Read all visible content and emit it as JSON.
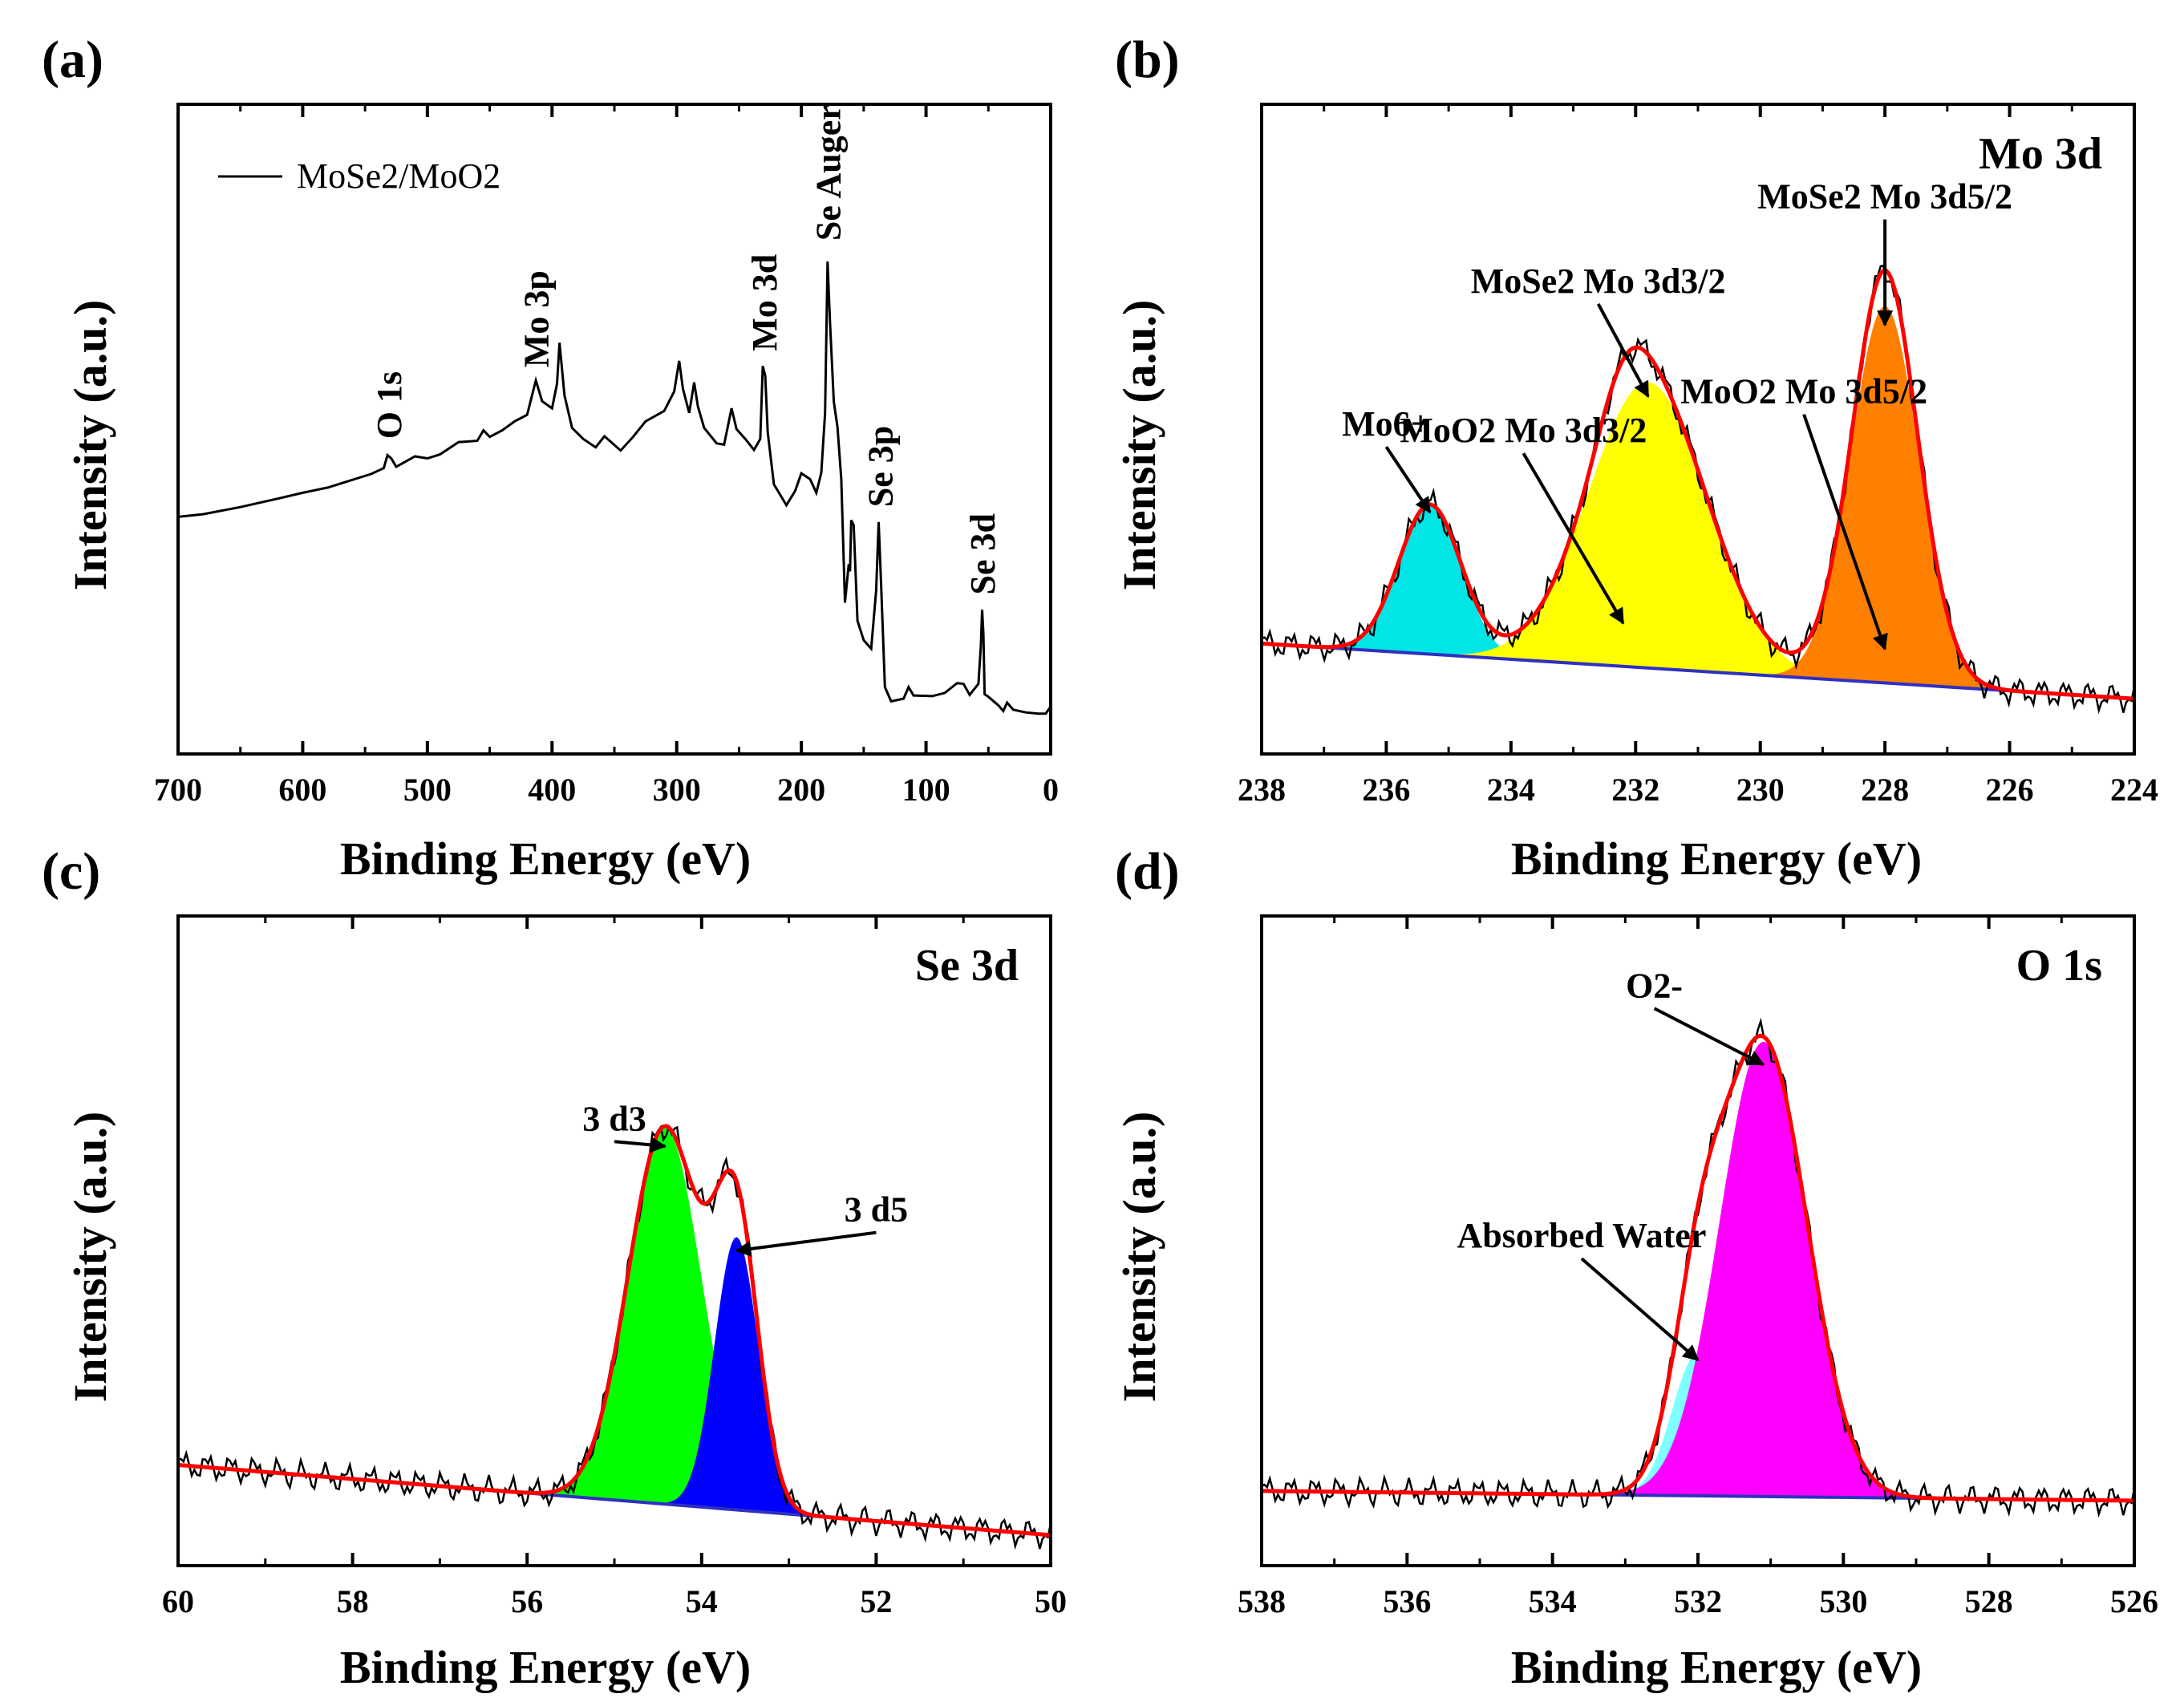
{
  "chart_data": [
    {
      "id": "a",
      "panel_label": "(a)",
      "type": "line",
      "xlabel": "Binding Energy (eV)",
      "ylabel": "Intensity (a.u.)",
      "xlim": [
        700,
        0
      ],
      "ylim": [
        0,
        100
      ],
      "xticks": [
        700,
        600,
        500,
        400,
        300,
        200,
        100,
        0
      ],
      "legend": {
        "label": "MoSe2/MoO2",
        "position": "top-left"
      },
      "series": [
        {
          "name": "MoSe2/MoO2",
          "color": "#000000",
          "points": [
            [
              700,
              36.5
            ],
            [
              680,
              36.9
            ],
            [
              650,
              38
            ],
            [
              620,
              39.3
            ],
            [
              600,
              40.2
            ],
            [
              580,
              41
            ],
            [
              560,
              42.2
            ],
            [
              545,
              43.1
            ],
            [
              535,
              44
            ],
            [
              532,
              46
            ],
            [
              529,
              45.5
            ],
            [
              525,
              44.2
            ],
            [
              510,
              45.8
            ],
            [
              500,
              45.5
            ],
            [
              490,
              46.1
            ],
            [
              475,
              48
            ],
            [
              460,
              48.2
            ],
            [
              455,
              49.8
            ],
            [
              450,
              48.8
            ],
            [
              440,
              49.8
            ],
            [
              430,
              51.2
            ],
            [
              420,
              52.2
            ],
            [
              413,
              57.5
            ],
            [
              408,
              54.3
            ],
            [
              400,
              53.2
            ],
            [
              396,
              57
            ],
            [
              394,
              63.3
            ],
            [
              390,
              55.2
            ],
            [
              384,
              50.2
            ],
            [
              375,
              48.5
            ],
            [
              365,
              47.2
            ],
            [
              358,
              48.9
            ],
            [
              352,
              47.9
            ],
            [
              345,
              46.7
            ],
            [
              335,
              48.8
            ],
            [
              325,
              51.2
            ],
            [
              310,
              52.8
            ],
            [
              302,
              55.8
            ],
            [
              298,
              60.5
            ],
            [
              295,
              56.2
            ],
            [
              290,
              52.5
            ],
            [
              286,
              57.2
            ],
            [
              283,
              53.5
            ],
            [
              278,
              50.2
            ],
            [
              268,
              47.8
            ],
            [
              262,
              47.6
            ],
            [
              256,
              53.2
            ],
            [
              252,
              50
            ],
            [
              245,
              48.5
            ],
            [
              238,
              46.8
            ],
            [
              233,
              48.5
            ],
            [
              231,
              59.7
            ],
            [
              229,
              58.2
            ],
            [
              227,
              49.5
            ],
            [
              222,
              41.5
            ],
            [
              212,
              38.3
            ],
            [
              205,
              40.5
            ],
            [
              200,
              43.2
            ],
            [
              193,
              42.3
            ],
            [
              188,
              40.2
            ],
            [
              184,
              43.3
            ],
            [
              181,
              52.5
            ],
            [
              179,
              75.8
            ],
            [
              177,
              66.3
            ],
            [
              174,
              54.2
            ],
            [
              171,
              50.3
            ],
            [
              168,
              42.3
            ],
            [
              165,
              23.3
            ],
            [
              162,
              29.2
            ],
            [
              161,
              28.1
            ],
            [
              160,
              36
            ],
            [
              158,
              35.2
            ],
            [
              155,
              20.5
            ],
            [
              150,
              17.5
            ],
            [
              144,
              16.2
            ],
            [
              140,
              25.2
            ],
            [
              138,
              35.7
            ],
            [
              136,
              26
            ],
            [
              133,
              10.3
            ],
            [
              128,
              8.1
            ],
            [
              118,
              8.5
            ],
            [
              114,
              10.3
            ],
            [
              110,
              9
            ],
            [
              95,
              8.9
            ],
            [
              85,
              9.4
            ],
            [
              75,
              10.9
            ],
            [
              70,
              10.8
            ],
            [
              65,
              9.1
            ],
            [
              58,
              10.8
            ],
            [
              56,
              16.8
            ],
            [
              55,
              22.2
            ],
            [
              54,
              18.5
            ],
            [
              53,
              9.2
            ],
            [
              50,
              8.8
            ],
            [
              42,
              7.5
            ],
            [
              38,
              6.6
            ],
            [
              35,
              7.9
            ],
            [
              30,
              6.8
            ],
            [
              20,
              6.4
            ],
            [
              10,
              6.2
            ],
            [
              4,
              6.2
            ],
            [
              0,
              7.3
            ]
          ]
        }
      ],
      "annotations": [
        {
          "text": "O 1s",
          "x": 530,
          "y": 48.5
        },
        {
          "text": "Mo 3p",
          "x": 412,
          "y": 59.5
        },
        {
          "text": "Mo 3d",
          "x": 229,
          "y": 62
        },
        {
          "text": "Se Auger",
          "x": 178,
          "y": 79
        },
        {
          "text": "Se 3p",
          "x": 136,
          "y": 38
        },
        {
          "text": "Se 3d",
          "x": 54,
          "y": 24.5
        }
      ]
    },
    {
      "id": "b",
      "panel_label": "(b)",
      "type": "area",
      "title": "Mo 3d",
      "xlabel": "Binding Energy (eV)",
      "ylabel": "Intensity (a.u.)",
      "xlim": [
        238,
        224
      ],
      "ylim": [
        0,
        100
      ],
      "xticks": [
        238,
        236,
        234,
        232,
        230,
        228,
        226,
        224
      ],
      "baseline": [
        [
          238,
          17
        ],
        [
          224,
          8.5
        ]
      ],
      "envelope_color": "#ff0000",
      "raw_color": "#000000",
      "peaks": [
        {
          "name": "Mo6+",
          "center": 235.3,
          "height": 23,
          "sigma": 0.5,
          "color": "#00e5e5"
        },
        {
          "name": "MoO2 Mo 3d3/2",
          "center": 232.2,
          "height": 7,
          "sigma": 0.4,
          "color": "#800080"
        },
        {
          "name": "MoSe2 Mo 3d3/2",
          "center": 231.8,
          "height": 44,
          "sigma": 0.95,
          "color": "#ffff00"
        },
        {
          "name": "MoO2 Mo 3d5/2",
          "center": 228.0,
          "height": 5.5,
          "sigma": 0.35,
          "color": "#9900ff"
        },
        {
          "name": "MoSe2 Mo 3d5/2",
          "center": 228.0,
          "height": 58,
          "sigma": 0.55,
          "color": "#ff8000"
        }
      ],
      "annotations": [
        {
          "text": "Mo6+",
          "x": 236.0,
          "y": 49
        },
        {
          "text": "MoO2 Mo 3d3/2",
          "x": 233.8,
          "y": 48
        },
        {
          "text": "MoSe2 Mo 3d3/2",
          "x": 232.6,
          "y": 71
        },
        {
          "text": "MoO2 Mo 3d5/2",
          "x": 229.3,
          "y": 54
        },
        {
          "text": "MoSe2 Mo 3d5/2",
          "x": 228.0,
          "y": 84
        }
      ]
    },
    {
      "id": "c",
      "panel_label": "(c)",
      "type": "area",
      "title": "Se 3d",
      "xlabel": "Binding Energy (eV)",
      "ylabel": "Intensity (a.u.)",
      "xlim": [
        60,
        50
      ],
      "ylim": [
        0,
        100
      ],
      "xticks": [
        60,
        58,
        56,
        54,
        52,
        50
      ],
      "baseline": [
        [
          60,
          15.5
        ],
        [
          50,
          4.7
        ]
      ],
      "envelope_color": "#ff0000",
      "raw_color": "#000000",
      "peaks": [
        {
          "name": "3 d3",
          "center": 54.42,
          "height": 58,
          "sigma": 0.42,
          "color": "#00ff00"
        },
        {
          "name": "3 d5",
          "center": 53.6,
          "height": 42,
          "sigma": 0.25,
          "color": "#0000ff"
        }
      ],
      "annotations": [
        {
          "text": "3 d3",
          "x": 55.0,
          "y": 67
        },
        {
          "text": "3 d5",
          "x": 52.0,
          "y": 53
        }
      ]
    },
    {
      "id": "d",
      "panel_label": "(d)",
      "type": "area",
      "title": "O 1s",
      "xlabel": "Binding Energy (eV)",
      "ylabel": "Intensity (a.u.)",
      "xlim": [
        538,
        526
      ],
      "ylim": [
        0,
        100
      ],
      "xticks": [
        538,
        536,
        534,
        532,
        530,
        528,
        526
      ],
      "baseline": [
        [
          538,
          11.5
        ],
        [
          526,
          10
        ]
      ],
      "envelope_color": "#ff0000",
      "raw_color": "#000000",
      "peaks": [
        {
          "name": "Absorbed Water",
          "center": 532.0,
          "height": 22,
          "sigma": 0.35,
          "color": "#7fffff"
        },
        {
          "name": "O2-",
          "center": 531.1,
          "height": 70,
          "sigma": 0.6,
          "color": "#ff00ff"
        }
      ],
      "annotations": [
        {
          "text": "O2-",
          "x": 532.6,
          "y": 87.5
        },
        {
          "text": "Absorbed Water",
          "x": 533.6,
          "y": 49
        }
      ]
    }
  ]
}
